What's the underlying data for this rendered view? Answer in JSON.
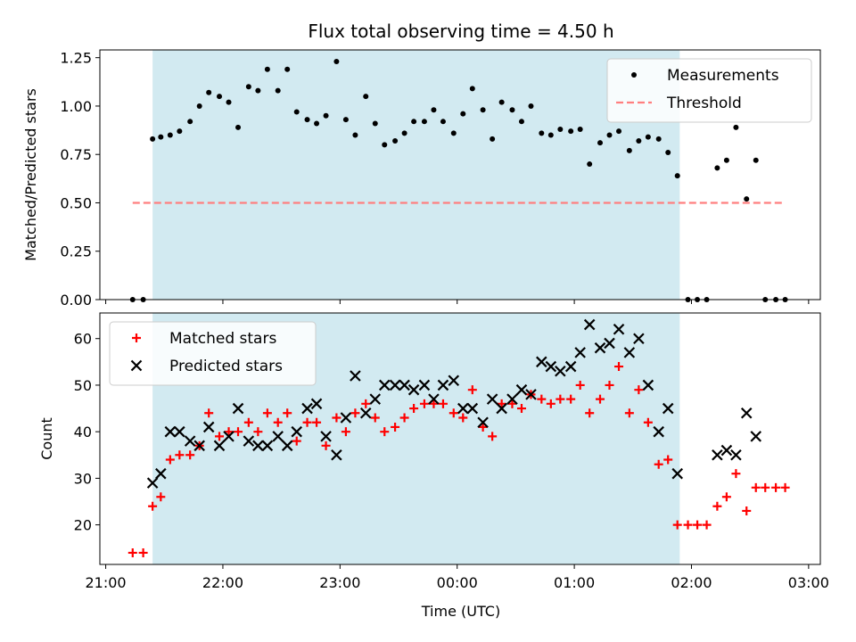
{
  "chart_data": {
    "title": "Flux total observing time = 4.50 h",
    "xlabel": "Time (UTC)",
    "x_unit": "hours UTC (values after 24 are the next day)",
    "x_ticks": [
      {
        "label": "21:00",
        "value": 21
      },
      {
        "label": "22:00",
        "value": 22
      },
      {
        "label": "23:00",
        "value": 23
      },
      {
        "label": "00:00",
        "value": 24
      },
      {
        "label": "01:00",
        "value": 25
      },
      {
        "label": "02:00",
        "value": 26
      },
      {
        "label": "03:00",
        "value": 27
      }
    ],
    "xlim": [
      20.95,
      27.1
    ],
    "shaded_span": {
      "start": 21.4,
      "end": 25.9,
      "color": "#add8e6"
    },
    "panels": [
      {
        "type": "scatter",
        "ylabel": "Matched/Predicted stars",
        "ylim": [
          0,
          1.29
        ],
        "y_ticks": [
          "0.00",
          "0.25",
          "0.50",
          "0.75",
          "1.00",
          "1.25"
        ],
        "legend": {
          "position": "upper right",
          "entries": [
            "Measurements",
            "Threshold"
          ]
        },
        "series": [
          {
            "name": "Measurements",
            "type": "scatter",
            "marker": "dot",
            "color": "#000000",
            "x": [
              21.23,
              21.32,
              21.4,
              21.47,
              21.55,
              21.63,
              21.72,
              21.8,
              21.88,
              21.97,
              22.05,
              22.13,
              22.22,
              22.3,
              22.38,
              22.47,
              22.55,
              22.63,
              22.72,
              22.8,
              22.88,
              22.97,
              23.05,
              23.13,
              23.22,
              23.3,
              23.38,
              23.47,
              23.55,
              23.63,
              23.72,
              23.8,
              23.88,
              23.97,
              24.05,
              24.13,
              24.22,
              24.3,
              24.38,
              24.47,
              24.55,
              24.63,
              24.72,
              24.8,
              24.88,
              24.97,
              25.05,
              25.13,
              25.22,
              25.3,
              25.38,
              25.47,
              25.55,
              25.63,
              25.72,
              25.8,
              25.88,
              25.97,
              26.05,
              26.13,
              26.22,
              26.3,
              26.38,
              26.47,
              26.55,
              26.63,
              26.72,
              26.8
            ],
            "y": [
              0,
              0,
              0.83,
              0.84,
              0.85,
              0.87,
              0.92,
              1.0,
              1.07,
              1.05,
              1.02,
              0.89,
              1.1,
              1.08,
              1.19,
              1.08,
              1.19,
              0.97,
              0.93,
              0.91,
              0.95,
              1.23,
              0.93,
              0.85,
              1.05,
              0.91,
              0.8,
              0.82,
              0.86,
              0.92,
              0.92,
              0.98,
              0.92,
              0.86,
              0.96,
              1.09,
              0.98,
              0.83,
              1.02,
              0.98,
              0.92,
              1.0,
              0.86,
              0.85,
              0.88,
              0.87,
              0.88,
              0.7,
              0.81,
              0.85,
              0.87,
              0.77,
              0.82,
              0.84,
              0.83,
              0.76,
              0.64,
              0,
              0,
              0,
              0.68,
              0.72,
              0.89,
              0.52,
              0.72,
              0,
              0,
              0
            ]
          },
          {
            "name": "Threshold",
            "type": "line",
            "style": "dashed",
            "color": "#ff7f7f",
            "x": [
              21.23,
              26.8
            ],
            "y": [
              0.5,
              0.5
            ]
          }
        ]
      },
      {
        "type": "scatter",
        "ylabel": "Count",
        "ylim": [
          11.5,
          65.5
        ],
        "y_ticks": [
          "20",
          "30",
          "40",
          "50",
          "60"
        ],
        "legend": {
          "position": "upper left",
          "entries": [
            "Matched stars",
            "Predicted stars"
          ]
        },
        "series": [
          {
            "name": "Matched stars",
            "type": "scatter",
            "marker": "plus",
            "color": "#ff0000",
            "x": [
              21.23,
              21.32,
              21.4,
              21.47,
              21.55,
              21.63,
              21.72,
              21.8,
              21.88,
              21.97,
              22.05,
              22.13,
              22.22,
              22.3,
              22.38,
              22.47,
              22.55,
              22.63,
              22.72,
              22.8,
              22.88,
              22.97,
              23.05,
              23.13,
              23.22,
              23.3,
              23.38,
              23.47,
              23.55,
              23.63,
              23.72,
              23.8,
              23.88,
              23.97,
              24.05,
              24.13,
              24.22,
              24.3,
              24.38,
              24.47,
              24.55,
              24.63,
              24.72,
              24.8,
              24.88,
              24.97,
              25.05,
              25.13,
              25.22,
              25.3,
              25.38,
              25.47,
              25.55,
              25.63,
              25.72,
              25.8,
              25.88,
              25.97,
              26.05,
              26.13,
              26.22,
              26.3,
              26.38,
              26.47,
              26.55,
              26.63,
              26.72,
              26.8
            ],
            "y": [
              14,
              14,
              24,
              26,
              34,
              35,
              35,
              37,
              44,
              39,
              40,
              40,
              42,
              40,
              44,
              42,
              44,
              38,
              42,
              42,
              37,
              43,
              40,
              44,
              46,
              43,
              40,
              41,
              43,
              45,
              46,
              46,
              46,
              44,
              43,
              49,
              41,
              39,
              46,
              46,
              45,
              48,
              47,
              46,
              47,
              47,
              50,
              44,
              47,
              50,
              54,
              44,
              49,
              42,
              33,
              34,
              20,
              20,
              20,
              20,
              24,
              26,
              31,
              23,
              28,
              28,
              28,
              28
            ]
          },
          {
            "name": "Predicted stars",
            "type": "scatter",
            "marker": "x",
            "color": "#000000",
            "x": [
              21.4,
              21.47,
              21.55,
              21.63,
              21.72,
              21.8,
              21.88,
              21.97,
              22.05,
              22.13,
              22.22,
              22.3,
              22.38,
              22.47,
              22.55,
              22.63,
              22.72,
              22.8,
              22.88,
              22.97,
              23.05,
              23.13,
              23.22,
              23.3,
              23.38,
              23.47,
              23.55,
              23.63,
              23.72,
              23.8,
              23.88,
              23.97,
              24.05,
              24.13,
              24.22,
              24.3,
              24.38,
              24.47,
              24.55,
              24.63,
              24.72,
              24.8,
              24.88,
              24.97,
              25.05,
              25.13,
              25.22,
              25.3,
              25.38,
              25.47,
              25.55,
              25.63,
              25.72,
              25.8,
              25.88,
              26.22,
              26.3,
              26.38,
              26.47,
              26.55
            ],
            "y": [
              29,
              31,
              40,
              40,
              38,
              37,
              41,
              37,
              39,
              45,
              38,
              37,
              37,
              39,
              37,
              40,
              45,
              46,
              39,
              35,
              43,
              52,
              44,
              47,
              50,
              50,
              50,
              49,
              50,
              47,
              50,
              51,
              45,
              45,
              42,
              47,
              45,
              47,
              49,
              48,
              55,
              54,
              53,
              54,
              57,
              63,
              58,
              59,
              62,
              57,
              60,
              50,
              40,
              45,
              31,
              35,
              36,
              35,
              44,
              39
            ]
          }
        ]
      }
    ]
  }
}
